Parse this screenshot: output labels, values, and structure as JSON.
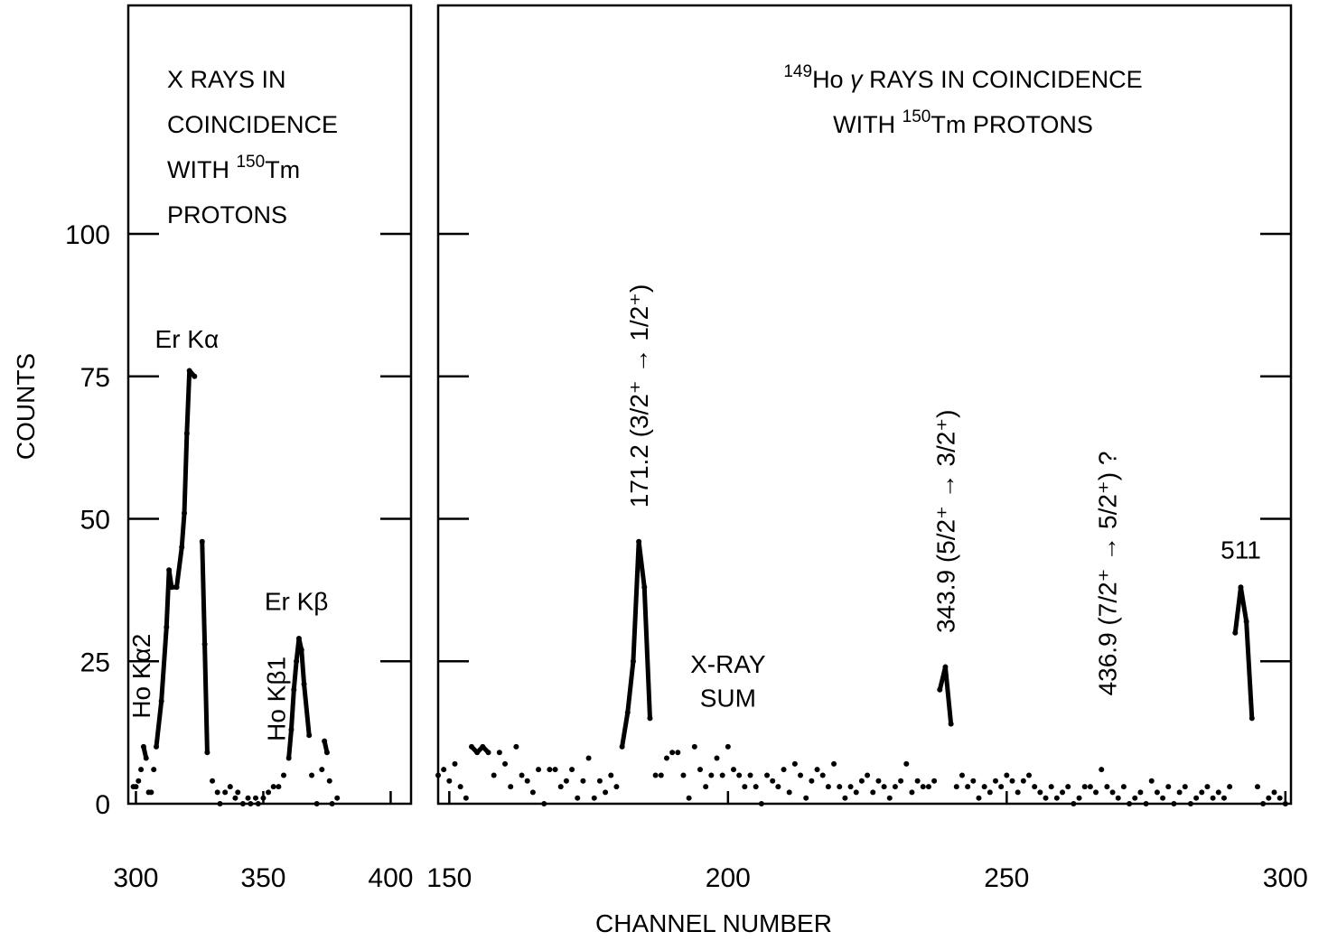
{
  "chart_data": [
    {
      "type": "scatter",
      "title_lines": [
        [
          {
            "t": "X RAYS  IN"
          }
        ],
        [
          {
            "t": "COINCIDENCE"
          }
        ],
        [
          {
            "t": "WITH  "
          },
          {
            "t": "150",
            "sup": true
          },
          {
            "t": "Tm"
          }
        ],
        [
          {
            "t": "PROTONS"
          }
        ]
      ],
      "ylabel": "COUNTS",
      "xlabel": "CHANNEL  NUMBER",
      "xlim": [
        297,
        408
      ],
      "ylim": [
        0,
        160
      ],
      "xticks": [
        300,
        350,
        400
      ],
      "yticks": [
        0,
        25,
        50,
        75,
        100
      ],
      "series": [
        {
          "values": [
            [
              299,
              3
            ],
            [
              300,
              3
            ],
            [
              301,
              4
            ],
            [
              302,
              6
            ],
            [
              303,
              10
            ],
            [
              304,
              8
            ],
            [
              305,
              2
            ],
            [
              306,
              2
            ],
            [
              307,
              6
            ],
            [
              308,
              10
            ],
            [
              310,
              18
            ],
            [
              312,
              31
            ],
            [
              313,
              41
            ],
            [
              314,
              38
            ],
            [
              316,
              38
            ],
            [
              318,
              45
            ],
            [
              319,
              51
            ],
            [
              320,
              65
            ],
            [
              321,
              76
            ],
            [
              323,
              75
            ],
            [
              326,
              46
            ],
            [
              327,
              28
            ],
            [
              328,
              9
            ],
            [
              330,
              4
            ],
            [
              332,
              2
            ],
            [
              333,
              0
            ],
            [
              335,
              2
            ],
            [
              337,
              3
            ],
            [
              339,
              1
            ],
            [
              340,
              2
            ],
            [
              342,
              0
            ],
            [
              344,
              1
            ],
            [
              345,
              0
            ],
            [
              347,
              1
            ],
            [
              348,
              0
            ],
            [
              350,
              1
            ],
            [
              352,
              2
            ],
            [
              354,
              3
            ],
            [
              356,
              3
            ],
            [
              358,
              5
            ],
            [
              360,
              8
            ],
            [
              361,
              13
            ],
            [
              362,
              20
            ],
            [
              363,
              25
            ],
            [
              364,
              29
            ],
            [
              365,
              27
            ],
            [
              366,
              21
            ],
            [
              368,
              12
            ],
            [
              369,
              5
            ],
            [
              371,
              0
            ],
            [
              373,
              6
            ],
            [
              374,
              11
            ],
            [
              375,
              9
            ],
            [
              376,
              4
            ],
            [
              377,
              0
            ],
            [
              379,
              1
            ]
          ]
        }
      ],
      "peak_labels": [
        {
          "text": "Er Kα",
          "x": 320,
          "y": 80
        },
        {
          "text": "Er Kβ",
          "x": 363,
          "y": 34
        },
        {
          "text": "Ho Kα2",
          "x": 302,
          "y": 14,
          "rotated": true
        },
        {
          "text": "Ho Kβ1",
          "x": 355,
          "y": 10,
          "rotated": true
        }
      ]
    },
    {
      "type": "scatter",
      "title_lines": [
        [
          {
            "t": "149",
            "sup": true
          },
          {
            "t": "Ho "
          },
          {
            "t": "γ",
            "italic": true
          },
          {
            "t": " RAYS  IN  COINCIDENCE"
          }
        ],
        [
          {
            "t": "WITH  "
          },
          {
            "t": "150",
            "sup": true
          },
          {
            "t": "Tm  PROTONS"
          }
        ]
      ],
      "xlim": [
        148,
        301
      ],
      "ylim": [
        0,
        160
      ],
      "xticks": [
        150,
        200,
        250,
        300
      ],
      "series": [
        {
          "values": [
            [
              148,
              5
            ],
            [
              149,
              6
            ],
            [
              150,
              4
            ],
            [
              151,
              7
            ],
            [
              152,
              3
            ],
            [
              153,
              1
            ],
            [
              154,
              10
            ],
            [
              155,
              9
            ],
            [
              156,
              10
            ],
            [
              157,
              9
            ],
            [
              158,
              5
            ],
            [
              159,
              9
            ],
            [
              160,
              7
            ],
            [
              161,
              3
            ],
            [
              162,
              10
            ],
            [
              163,
              5
            ],
            [
              164,
              4
            ],
            [
              165,
              2
            ],
            [
              166,
              6
            ],
            [
              167,
              0
            ],
            [
              168,
              6
            ],
            [
              169,
              6
            ],
            [
              170,
              3
            ],
            [
              171,
              4
            ],
            [
              172,
              6
            ],
            [
              173,
              1
            ],
            [
              174,
              4
            ],
            [
              175,
              8
            ],
            [
              176,
              1
            ],
            [
              177,
              4
            ],
            [
              178,
              2
            ],
            [
              179,
              5
            ],
            [
              180,
              3
            ],
            [
              181,
              10
            ],
            [
              182,
              16
            ],
            [
              183,
              25
            ],
            [
              184,
              46
            ],
            [
              185,
              38
            ],
            [
              186,
              15
            ],
            [
              187,
              5
            ],
            [
              188,
              5
            ],
            [
              189,
              8
            ],
            [
              190,
              9
            ],
            [
              191,
              9
            ],
            [
              192,
              5
            ],
            [
              193,
              1
            ],
            [
              194,
              10
            ],
            [
              195,
              6
            ],
            [
              196,
              3
            ],
            [
              197,
              5
            ],
            [
              198,
              8
            ],
            [
              199,
              5
            ],
            [
              200,
              10
            ],
            [
              201,
              6
            ],
            [
              202,
              5
            ],
            [
              203,
              3
            ],
            [
              204,
              5
            ],
            [
              205,
              3
            ],
            [
              206,
              0
            ],
            [
              207,
              5
            ],
            [
              208,
              4
            ],
            [
              209,
              3
            ],
            [
              210,
              6
            ],
            [
              211,
              2
            ],
            [
              212,
              7
            ],
            [
              213,
              5
            ],
            [
              214,
              1
            ],
            [
              215,
              4
            ],
            [
              216,
              6
            ],
            [
              217,
              5
            ],
            [
              218,
              3
            ],
            [
              219,
              7
            ],
            [
              220,
              3
            ],
            [
              221,
              1
            ],
            [
              222,
              3
            ],
            [
              223,
              2
            ],
            [
              224,
              4
            ],
            [
              225,
              5
            ],
            [
              226,
              2
            ],
            [
              227,
              4
            ],
            [
              228,
              3
            ],
            [
              229,
              1
            ],
            [
              230,
              3
            ],
            [
              231,
              4
            ],
            [
              232,
              7
            ],
            [
              233,
              2
            ],
            [
              234,
              4
            ],
            [
              235,
              3
            ],
            [
              236,
              3
            ],
            [
              237,
              4
            ],
            [
              238,
              20
            ],
            [
              239,
              24
            ],
            [
              240,
              14
            ],
            [
              241,
              3
            ],
            [
              242,
              5
            ],
            [
              243,
              3
            ],
            [
              244,
              4
            ],
            [
              245,
              1
            ],
            [
              246,
              3
            ],
            [
              247,
              2
            ],
            [
              248,
              4
            ],
            [
              249,
              3
            ],
            [
              250,
              5
            ],
            [
              251,
              4
            ],
            [
              252,
              2
            ],
            [
              253,
              4
            ],
            [
              254,
              5
            ],
            [
              255,
              3
            ],
            [
              256,
              2
            ],
            [
              257,
              1
            ],
            [
              258,
              3
            ],
            [
              259,
              1
            ],
            [
              260,
              2
            ],
            [
              261,
              3
            ],
            [
              262,
              0
            ],
            [
              263,
              1
            ],
            [
              264,
              3
            ],
            [
              265,
              3
            ],
            [
              266,
              2
            ],
            [
              267,
              6
            ],
            [
              268,
              3
            ],
            [
              269,
              2
            ],
            [
              270,
              1
            ],
            [
              271,
              3
            ],
            [
              272,
              0
            ],
            [
              273,
              1
            ],
            [
              274,
              2
            ],
            [
              275,
              0
            ],
            [
              276,
              4
            ],
            [
              277,
              2
            ],
            [
              278,
              1
            ],
            [
              279,
              3
            ],
            [
              280,
              0
            ],
            [
              281,
              2
            ],
            [
              282,
              3
            ],
            [
              283,
              0
            ],
            [
              284,
              1
            ],
            [
              285,
              2
            ],
            [
              286,
              3
            ],
            [
              287,
              1
            ],
            [
              288,
              2
            ],
            [
              289,
              1
            ],
            [
              290,
              3
            ],
            [
              291,
              30
            ],
            [
              292,
              38
            ],
            [
              293,
              32
            ],
            [
              294,
              15
            ],
            [
              295,
              3
            ],
            [
              296,
              0
            ],
            [
              297,
              1
            ],
            [
              298,
              2
            ],
            [
              299,
              1
            ],
            [
              300,
              0
            ]
          ]
        }
      ],
      "peak_labels": [
        {
          "text": "171.2  (3/2⁺ → 1/2⁺)",
          "x": 184,
          "y": 51,
          "rotated": true
        },
        {
          "text": "343.9  (5/2⁺ → 3/2⁺)",
          "x": 239,
          "y": 29,
          "rotated": true
        },
        {
          "text": "436.9  (7/2⁺ → 5/2⁺) ?",
          "x": 268,
          "y": 18,
          "rotated": true
        },
        {
          "text": "511",
          "x": 292,
          "y": 43
        },
        {
          "text": "X-RAY",
          "x": 200,
          "y": 23
        },
        {
          "text": "SUM",
          "x": 200,
          "y": 17
        }
      ]
    }
  ]
}
